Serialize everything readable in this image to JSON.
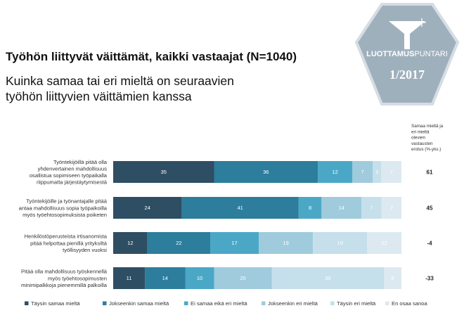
{
  "title": "Työhön liittyvät väittämät, kaikki vastaajat (N=1040)",
  "subtitle_lines": [
    "Kuinka samaa tai eri mieltä on seuraavien",
    "työhön liittyvien väittämien kanssa"
  ],
  "badge": {
    "brand_bold": "LUOTTAMUS",
    "brand_light": "PUNTARI",
    "issue": "1/2017"
  },
  "colors": {
    "series": [
      "#2e4e63",
      "#2d7d9c",
      "#4aa8c6",
      "#9fcbdd",
      "#c5dfeb",
      "#dde9f0"
    ],
    "badge_fill": "#9fb0bd",
    "badge_stroke": "#d5dde3"
  },
  "chart_data": {
    "type": "bar",
    "orientation": "horizontal",
    "stacked": true,
    "xlim": [
      0,
      100
    ],
    "categories": [
      "Työntekijöillä pitää olla yhdenvertainen mahdollisuus osallistua sopimiseen työpaikalla riippumatta järjestäytymisestä",
      "Työntekijöille ja työnantajalle pitää antaa mahdollisuus sopia työpaikoilla myös työehtosopimuksista poiketen",
      "Henkilöstöperusteista irtisanomista pitää helpottaa pienillä yrityksiltä työllisyyden vuoksi",
      "Pitää olla mahdollisuus työskennellä myös työehtosopimusten minimipalkkoja pienemmillä palkoilla"
    ],
    "category_lines": [
      [
        "Työntekijöillä pitää olla",
        "yhdenvertainen mahdollisuus",
        "osallistua sopimiseen työpaikalla",
        "riippumatta järjestäytymisestä"
      ],
      [
        "Työntekijöille ja työnantajalle pitää",
        "antaa mahdollisuus sopia työpaikoilla",
        "myös työehtosopimuksista poiketen"
      ],
      [
        "Henkilöstöperusteista irtisanomista",
        "pitää helpottaa pienillä yrityksiltä",
        "työllisyyden vuoksi"
      ],
      [
        "Pitää olla mahdollisuus työskennellä",
        "myös työehtosopimusten",
        "minimipalkkoja pienemmillä palkoilla"
      ]
    ],
    "series": [
      {
        "name": "Täysin samaa mieltä",
        "values": [
          35,
          24,
          12,
          11
        ]
      },
      {
        "name": "Jokseenkin samaa mieltä",
        "values": [
          36,
          41,
          22,
          14
        ]
      },
      {
        "name": "Ei samaa eikä eri mieltä",
        "values": [
          12,
          8,
          17,
          10
        ]
      },
      {
        "name": "Jokseenkin eri mieltä",
        "values": [
          7,
          14,
          19,
          20
        ]
      },
      {
        "name": "Täysin eri mieltä",
        "values": [
          3,
          7,
          19,
          39
        ]
      },
      {
        "name": "En osaa sanoa",
        "values": [
          7,
          7,
          12,
          6
        ]
      }
    ],
    "difference_header": [
      "Samaa mieltä ja",
      "eri mieltä",
      "olevien",
      "vastausten",
      "erotus  (%-yks.)"
    ],
    "difference": [
      "61",
      "45",
      "-4",
      "-33"
    ],
    "legend_position": "bottom",
    "grid": false
  }
}
